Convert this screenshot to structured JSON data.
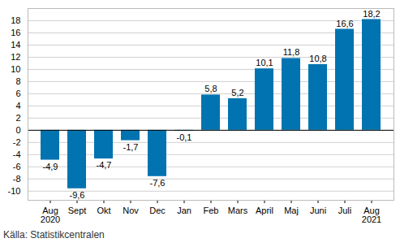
{
  "chart_data": {
    "type": "bar",
    "categories": [
      "Aug\n2020",
      "Sept",
      "Okt",
      "Nov",
      "Dec",
      "Jan",
      "Feb",
      "Mars",
      "April",
      "Maj",
      "Juni",
      "Juli",
      "Aug\n2021"
    ],
    "values": [
      -4.9,
      -9.6,
      -4.7,
      -1.7,
      -7.6,
      -0.1,
      5.8,
      5.2,
      10.1,
      11.8,
      10.8,
      16.6,
      18.2
    ],
    "value_labels": [
      "-4,9",
      "-9,6",
      "-4,7",
      "-1,7",
      "-7,6",
      "-0,1",
      "5,8",
      "5,2",
      "10,1",
      "11,8",
      "10,8",
      "16,6",
      "18,2"
    ],
    "color": "#0073b0",
    "ylim": [
      -11.5,
      20
    ],
    "yticks": [
      -10,
      -8,
      -6,
      -4,
      -2,
      0,
      2,
      4,
      6,
      8,
      10,
      12,
      14,
      16,
      18
    ],
    "grid": true,
    "data_labels": true,
    "caption": "Källa: Statistikcentralen"
  }
}
